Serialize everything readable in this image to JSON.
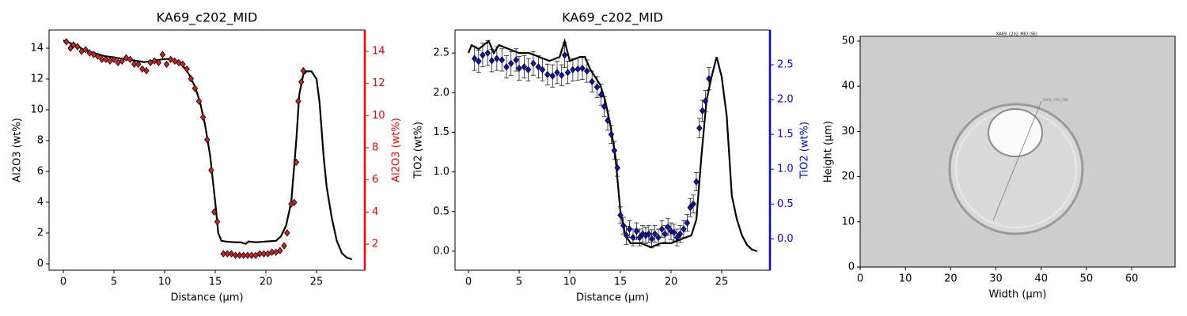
{
  "chart_data": [
    {
      "type": "line",
      "title": "KA69_c202_MID",
      "xlabel": "Distance (µm)",
      "ylabel": "Al2O3 (wt%)",
      "y2label": "Al2O3 (wt%)",
      "y2color": "#ff0000",
      "xlim": [
        -1.41,
        29.77
      ],
      "xticks": [
        0,
        5,
        10,
        15,
        20,
        25
      ],
      "ylim": [
        -0.41,
        15.18
      ],
      "yticks": [
        0,
        2,
        4,
        6,
        8,
        10,
        12,
        14
      ],
      "y2lim": [
        0.38,
        15.33
      ],
      "y2ticks": [
        2,
        4,
        6,
        8,
        10,
        12,
        14
      ],
      "series": [
        {
          "color": "#000000",
          "x": [
            0.0,
            0.5,
            1.0,
            1.5,
            2,
            3,
            4,
            5,
            6,
            7,
            8,
            9,
            10,
            10.5,
            11,
            11.5,
            12,
            12.5,
            13,
            13.5,
            14,
            14.5,
            15,
            15.3,
            15.6,
            16,
            17,
            17.5,
            18,
            18.3,
            19,
            20,
            21,
            21.5,
            22,
            22.5,
            23,
            23.3,
            23.7,
            24,
            24.5,
            25,
            25.3,
            25.7,
            26,
            26.5,
            27,
            27.5,
            28,
            28.5
          ],
          "values": [
            14.5,
            14.4,
            14.2,
            14.1,
            13.9,
            13.7,
            13.5,
            13.4,
            13.3,
            13.2,
            13.1,
            13.2,
            13.3,
            13.3,
            13.2,
            13.1,
            12.7,
            12.2,
            11.5,
            10.5,
            9.0,
            7.0,
            4.0,
            2.0,
            1.5,
            1.45,
            1.4,
            1.4,
            1.3,
            1.45,
            1.4,
            1.45,
            1.5,
            1.8,
            2.5,
            4.0,
            8.0,
            11.0,
            12.3,
            12.5,
            12.5,
            12.0,
            10.5,
            7.0,
            5.0,
            3.0,
            1.5,
            0.7,
            0.4,
            0.3
          ]
        },
        {
          "color": "#d62020",
          "axis": "y2",
          "marker": "diamond",
          "x": [
            0.3,
            0.7,
            1.0,
            1.4,
            1.8,
            2.2,
            2.6,
            3.0,
            3.4,
            3.8,
            4.2,
            4.6,
            5.0,
            5.4,
            5.8,
            6.2,
            6.6,
            7.0,
            7.4,
            7.8,
            8.2,
            8.6,
            9.0,
            9.4,
            9.8,
            10.2,
            10.6,
            11.0,
            11.4,
            11.8,
            12.2,
            12.6,
            13.0,
            13.4,
            13.8,
            14.2,
            14.6,
            14.9,
            15.2,
            15.8,
            16.2,
            16.6,
            17.0,
            17.4,
            17.8,
            18.2,
            18.6,
            19.0,
            19.4,
            19.8,
            20.2,
            20.6,
            21.0,
            21.4,
            21.8,
            22.1,
            22.5,
            22.8,
            23.0,
            23.2,
            23.5,
            23.7
          ],
          "values": [
            14.6,
            14.2,
            14.4,
            14.3,
            14.0,
            14.1,
            13.9,
            13.8,
            13.7,
            13.5,
            13.5,
            13.4,
            13.5,
            13.3,
            13.4,
            13.6,
            13.5,
            13.2,
            13.2,
            12.9,
            12.8,
            13.3,
            13.4,
            13.3,
            13.8,
            13.2,
            13.5,
            13.4,
            13.3,
            13.2,
            12.9,
            12.3,
            11.7,
            10.9,
            9.9,
            8.5,
            6.6,
            4.0,
            3.4,
            1.4,
            1.4,
            1.4,
            1.3,
            1.3,
            1.3,
            1.3,
            1.3,
            1.3,
            1.4,
            1.4,
            1.4,
            1.5,
            1.5,
            1.6,
            1.9,
            2.7,
            4.5,
            4.6,
            7.1,
            10.9,
            12.1,
            12.8
          ]
        }
      ]
    },
    {
      "type": "line",
      "title": "KA69_c202_MID",
      "xlabel": "Distance (µm)",
      "ylabel": "TiO2 (wt%)",
      "y2label": "TiO2 (wt%)",
      "y2color": "#0000ff",
      "xlim": [
        -1.33,
        29.77
      ],
      "xticks": [
        0,
        5,
        10,
        15,
        20,
        25
      ],
      "ylim": [
        -0.24,
        2.79
      ],
      "yticks": [
        {
          "value": 0,
          "label": "0.0"
        },
        0.5,
        {
          "value": 1,
          "label": "1.0"
        },
        1.5,
        {
          "value": 2,
          "label": "2.0"
        },
        2.5
      ],
      "y2lim": [
        -0.45,
        3.0
      ],
      "y2ticks": [
        {
          "value": 0,
          "label": "0.0"
        },
        0.5,
        {
          "value": 1,
          "label": "1.0"
        },
        1.5,
        {
          "value": 2,
          "label": "2.0"
        },
        2.5
      ],
      "series": [
        {
          "color": "#000000",
          "x": [
            0,
            0.3,
            1,
            1.5,
            2,
            2.5,
            3,
            4,
            5,
            6,
            7,
            8,
            9,
            9.5,
            10,
            11,
            11.5,
            12,
            13,
            13.5,
            14,
            14.5,
            15,
            15.5,
            16,
            17,
            18,
            19,
            20,
            21,
            22,
            22.5,
            23,
            23.5,
            24,
            24.5,
            25,
            25.5,
            26,
            26.5,
            27,
            27.5,
            28,
            28.5
          ],
          "values": [
            2.5,
            2.6,
            2.55,
            2.6,
            2.65,
            2.5,
            2.6,
            2.55,
            2.5,
            2.5,
            2.45,
            2.4,
            2.45,
            2.65,
            2.4,
            2.45,
            2.45,
            2.3,
            2.1,
            1.9,
            1.6,
            1.2,
            0.5,
            0.2,
            0.1,
            0.1,
            0.05,
            0.1,
            0.1,
            0.15,
            0.2,
            0.4,
            1.2,
            1.9,
            2.2,
            2.45,
            2.2,
            1.7,
            0.7,
            0.4,
            0.2,
            0.08,
            0.02,
            0.0
          ]
        },
        {
          "color": "#1010c8",
          "axis": "y2",
          "marker": "diamond",
          "x": [
            0.6,
            1.0,
            1.4,
            1.9,
            2.3,
            2.8,
            3.3,
            3.75,
            4.2,
            4.7,
            5.0,
            5.5,
            5.9,
            6.4,
            6.9,
            7.3,
            7.8,
            8.3,
            8.75,
            9.2,
            9.5,
            9.8,
            10.3,
            10.8,
            11.25,
            11.7,
            12.2,
            12.7,
            13.1,
            13.4,
            13.75,
            14.1,
            14.4,
            14.7,
            15.0,
            15.3,
            15.6,
            15.9,
            16.25,
            16.6,
            16.9,
            17.2,
            17.5,
            17.8,
            18.1,
            18.4,
            18.75,
            19.1,
            19.4,
            19.7,
            20.0,
            20.3,
            20.6,
            20.9,
            21.25,
            21.6,
            21.9,
            22.2,
            22.5,
            22.8,
            23.1,
            23.4,
            23.75
          ],
          "values": [
            2.59,
            2.55,
            2.64,
            2.67,
            2.56,
            2.59,
            2.57,
            2.47,
            2.52,
            2.57,
            2.45,
            2.47,
            2.43,
            2.52,
            2.47,
            2.43,
            2.36,
            2.34,
            2.39,
            2.35,
            2.64,
            2.39,
            2.43,
            2.44,
            2.45,
            2.41,
            2.26,
            2.18,
            2.07,
            1.9,
            1.7,
            1.5,
            1.27,
            1.02,
            0.34,
            0.19,
            0.05,
            0.14,
            0.02,
            0.11,
            0.02,
            0.07,
            0.05,
            0.07,
            0.0,
            0.07,
            0.02,
            0.14,
            0.07,
            0.17,
            0.11,
            0.09,
            0.02,
            0.07,
            0.14,
            0.23,
            0.45,
            0.5,
            0.82,
            1.59,
            1.84,
            1.98,
            2.3
          ],
          "errors": [
            0.17,
            0.16,
            0.17,
            0.18,
            0.16,
            0.17,
            0.16,
            0.16,
            0.17,
            0.16,
            0.17,
            0.16,
            0.16,
            0.17,
            0.16,
            0.16,
            0.15,
            0.16,
            0.16,
            0.15,
            0.18,
            0.16,
            0.16,
            0.16,
            0.16,
            0.16,
            0.15,
            0.15,
            0.15,
            0.14,
            0.14,
            0.13,
            0.13,
            0.12,
            0.12,
            0.12,
            0.13,
            0.12,
            0.12,
            0.12,
            0.12,
            0.12,
            0.12,
            0.12,
            0.13,
            0.12,
            0.12,
            0.12,
            0.12,
            0.12,
            0.12,
            0.12,
            0.12,
            0.12,
            0.12,
            0.12,
            0.13,
            0.13,
            0.13,
            0.14,
            0.15,
            0.15,
            0.16
          ]
        }
      ]
    },
    {
      "type": "image",
      "xlabel": "Width (µm)",
      "ylabel": "Height (µm)",
      "image_title": "KA69_c202_MID (SE)",
      "image_label": "KA69_c202_MID",
      "xlim": [
        0,
        69.6
      ],
      "xticks": [
        0,
        10,
        20,
        30,
        40,
        50,
        60
      ],
      "ylim": [
        0,
        51.05
      ],
      "yticks": [
        0,
        10,
        20,
        30,
        40,
        50
      ]
    }
  ]
}
